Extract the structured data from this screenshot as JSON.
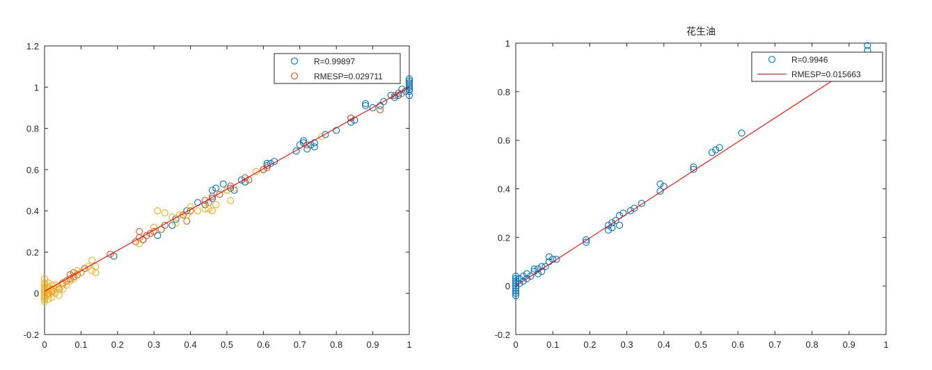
{
  "chart_data": [
    {
      "type": "scatter",
      "title": "",
      "xlabel": "",
      "ylabel": "",
      "xlim": [
        0,
        1
      ],
      "ylim": [
        -0.2,
        1.2
      ],
      "xticks": [
        "0",
        "0.1",
        "0.2",
        "0.3",
        "0.4",
        "0.5",
        "0.6",
        "0.7",
        "0.8",
        "0.9",
        "1"
      ],
      "yticks": [
        "-0.2",
        "0",
        "0.2",
        "0.4",
        "0.6",
        "0.8",
        "1",
        "1.2"
      ],
      "grid": false,
      "legend_position": "top-right",
      "legend": [
        "R=0.99897",
        "RMESP=0.029711"
      ],
      "fit_line": {
        "from": [
          0,
          0.01
        ],
        "to": [
          1,
          1.0
        ],
        "color": "#ff0000"
      },
      "series": [
        {
          "color": "#0072bd",
          "marker": "circle",
          "points": [
            [
              0.19,
              0.18
            ],
            [
              0.27,
              0.26
            ],
            [
              0.31,
              0.28
            ],
            [
              0.35,
              0.33
            ],
            [
              0.36,
              0.36
            ],
            [
              0.39,
              0.4
            ],
            [
              0.42,
              0.44
            ],
            [
              0.44,
              0.43
            ],
            [
              0.46,
              0.46
            ],
            [
              0.46,
              0.5
            ],
            [
              0.47,
              0.51
            ],
            [
              0.49,
              0.53
            ],
            [
              0.51,
              0.51
            ],
            [
              0.52,
              0.5
            ],
            [
              0.54,
              0.55
            ],
            [
              0.55,
              0.54
            ],
            [
              0.6,
              0.6
            ],
            [
              0.61,
              0.62
            ],
            [
              0.61,
              0.63
            ],
            [
              0.62,
              0.63
            ],
            [
              0.63,
              0.64
            ],
            [
              0.69,
              0.69
            ],
            [
              0.7,
              0.72
            ],
            [
              0.71,
              0.73
            ],
            [
              0.71,
              0.74
            ],
            [
              0.72,
              0.7
            ],
            [
              0.73,
              0.72
            ],
            [
              0.74,
              0.73
            ],
            [
              0.74,
              0.71
            ],
            [
              0.77,
              0.77
            ],
            [
              0.8,
              0.79
            ],
            [
              0.84,
              0.83
            ],
            [
              0.84,
              0.85
            ],
            [
              0.85,
              0.84
            ],
            [
              0.88,
              0.91
            ],
            [
              0.88,
              0.92
            ],
            [
              0.9,
              0.9
            ],
            [
              0.92,
              0.91
            ],
            [
              0.93,
              0.93
            ],
            [
              0.95,
              0.96
            ],
            [
              0.96,
              0.95
            ],
            [
              0.97,
              0.96
            ],
            [
              0.97,
              0.97
            ],
            [
              0.98,
              0.99
            ],
            [
              0.99,
              0.98
            ],
            [
              1,
              0.96
            ],
            [
              1,
              0.98
            ],
            [
              1,
              0.99
            ],
            [
              1,
              1
            ],
            [
              1,
              1.01
            ],
            [
              1,
              1.02
            ],
            [
              1,
              1.03
            ],
            [
              1,
              1.04
            ]
          ]
        },
        {
          "color": "#d95319",
          "marker": "circle",
          "points": [
            [
              0.01,
              0.0
            ],
            [
              0.02,
              0.01
            ],
            [
              0.04,
              0.02
            ],
            [
              0.05,
              0.05
            ],
            [
              0.06,
              0.06
            ],
            [
              0.07,
              0.07
            ],
            [
              0.07,
              0.09
            ],
            [
              0.08,
              0.08
            ],
            [
              0.08,
              0.1
            ],
            [
              0.09,
              0.09
            ],
            [
              0.1,
              0.1
            ],
            [
              0.11,
              0.12
            ],
            [
              0.18,
              0.19
            ],
            [
              0.25,
              0.25
            ],
            [
              0.26,
              0.27
            ],
            [
              0.26,
              0.3
            ],
            [
              0.27,
              0.26
            ],
            [
              0.28,
              0.28
            ],
            [
              0.29,
              0.29
            ],
            [
              0.3,
              0.3
            ],
            [
              0.32,
              0.31
            ],
            [
              0.33,
              0.33
            ],
            [
              0.38,
              0.38
            ],
            [
              0.39,
              0.35
            ],
            [
              0.4,
              0.4
            ],
            [
              0.44,
              0.45
            ],
            [
              0.45,
              0.44
            ],
            [
              0.46,
              0.47
            ],
            [
              0.48,
              0.48
            ],
            [
              0.5,
              0.5
            ],
            [
              0.51,
              0.52
            ],
            [
              0.55,
              0.56
            ],
            [
              0.56,
              0.55
            ],
            [
              0.6,
              0.6
            ],
            [
              0.61,
              0.61
            ],
            [
              0.72,
              0.72
            ],
            [
              0.84,
              0.85
            ],
            [
              0.92,
              0.89
            ],
            [
              0.96,
              0.96
            ],
            [
              0.98,
              0.97
            ]
          ]
        },
        {
          "color": "#edb120",
          "marker": "circle",
          "points": [
            [
              0,
              -0.04
            ],
            [
              0,
              -0.03
            ],
            [
              0,
              -0.02
            ],
            [
              0,
              -0.01
            ],
            [
              0,
              0
            ],
            [
              0,
              0.01
            ],
            [
              0,
              0.02
            ],
            [
              0,
              0.03
            ],
            [
              0,
              0.04
            ],
            [
              0,
              0.05
            ],
            [
              0,
              0.07
            ],
            [
              0.01,
              -0.03
            ],
            [
              0.01,
              -0.01
            ],
            [
              0.01,
              0.01
            ],
            [
              0.01,
              0.02
            ],
            [
              0.01,
              0.03
            ],
            [
              0.01,
              0.05
            ],
            [
              0.02,
              -0.02
            ],
            [
              0.02,
              0.0
            ],
            [
              0.02,
              0.02
            ],
            [
              0.02,
              0.04
            ],
            [
              0.03,
              0.0
            ],
            [
              0.03,
              0.02
            ],
            [
              0.03,
              0.04
            ],
            [
              0.04,
              -0.01
            ],
            [
              0.04,
              0.03
            ],
            [
              0.05,
              0.02
            ],
            [
              0.05,
              0.04
            ],
            [
              0.06,
              0.04
            ],
            [
              0.07,
              0.06
            ],
            [
              0.08,
              0.07
            ],
            [
              0.09,
              0.11
            ],
            [
              0.1,
              0.1
            ],
            [
              0.12,
              0.13
            ],
            [
              0.13,
              0.16
            ],
            [
              0.13,
              0.11
            ],
            [
              0.14,
              0.1
            ],
            [
              0.14,
              0.13
            ],
            [
              0.26,
              0.24
            ],
            [
              0.3,
              0.32
            ],
            [
              0.31,
              0.4
            ],
            [
              0.33,
              0.39
            ],
            [
              0.35,
              0.37
            ],
            [
              0.36,
              0.34
            ],
            [
              0.37,
              0.38
            ],
            [
              0.39,
              0.38
            ],
            [
              0.4,
              0.42
            ],
            [
              0.42,
              0.4
            ],
            [
              0.44,
              0.41
            ],
            [
              0.45,
              0.41
            ],
            [
              0.46,
              0.4
            ],
            [
              0.47,
              0.43
            ],
            [
              0.5,
              0.5
            ],
            [
              0.51,
              0.45
            ],
            [
              0.52,
              0.51
            ],
            [
              0.58,
              0.59
            ],
            [
              0.76,
              0.76
            ]
          ]
        }
      ]
    },
    {
      "type": "scatter",
      "title": "花生油",
      "xlabel": "",
      "ylabel": "",
      "xlim": [
        0,
        1
      ],
      "ylim": [
        -0.2,
        1
      ],
      "xticks": [
        "0",
        "0.1",
        "0.2",
        "0.3",
        "0.4",
        "0.5",
        "0.6",
        "0.7",
        "0.8",
        "0.9",
        "1"
      ],
      "yticks": [
        "-0.2",
        "0",
        "0.2",
        "0.4",
        "0.6",
        "0.8",
        "1"
      ],
      "grid": false,
      "legend_position": "top-right",
      "legend": [
        "R=0.9946",
        "RMESP=0.015663"
      ],
      "fit_line": {
        "from": [
          0,
          0.0
        ],
        "to": [
          0.88,
          0.87
        ],
        "color": "#ff0000"
      },
      "series": [
        {
          "color": "#0072bd",
          "marker": "circle",
          "points": [
            [
              0,
              -0.04
            ],
            [
              0,
              -0.03
            ],
            [
              0,
              -0.02
            ],
            [
              0,
              -0.01
            ],
            [
              0,
              0.0
            ],
            [
              0,
              0.01
            ],
            [
              0,
              0.02
            ],
            [
              0,
              0.03
            ],
            [
              0,
              0.04
            ],
            [
              0.01,
              0.01
            ],
            [
              0.01,
              0.03
            ],
            [
              0.02,
              0.02
            ],
            [
              0.02,
              0.04
            ],
            [
              0.03,
              0.03
            ],
            [
              0.03,
              0.05
            ],
            [
              0.04,
              0.04
            ],
            [
              0.05,
              0.06
            ],
            [
              0.05,
              0.07
            ],
            [
              0.06,
              0.05
            ],
            [
              0.06,
              0.07
            ],
            [
              0.07,
              0.08
            ],
            [
              0.07,
              0.06
            ],
            [
              0.08,
              0.08
            ],
            [
              0.09,
              0.1
            ],
            [
              0.09,
              0.12
            ],
            [
              0.1,
              0.11
            ],
            [
              0.11,
              0.11
            ],
            [
              0.19,
              0.18
            ],
            [
              0.19,
              0.19
            ],
            [
              0.25,
              0.23
            ],
            [
              0.25,
              0.25
            ],
            [
              0.26,
              0.24
            ],
            [
              0.26,
              0.26
            ],
            [
              0.27,
              0.27
            ],
            [
              0.28,
              0.25
            ],
            [
              0.28,
              0.29
            ],
            [
              0.29,
              0.3
            ],
            [
              0.31,
              0.31
            ],
            [
              0.32,
              0.32
            ],
            [
              0.34,
              0.34
            ],
            [
              0.39,
              0.39
            ],
            [
              0.39,
              0.42
            ],
            [
              0.4,
              0.41
            ],
            [
              0.48,
              0.48
            ],
            [
              0.48,
              0.49
            ],
            [
              0.53,
              0.55
            ],
            [
              0.54,
              0.56
            ],
            [
              0.55,
              0.57
            ],
            [
              0.61,
              0.63
            ],
            [
              0.95,
              0.97
            ],
            [
              0.95,
              0.99
            ]
          ]
        }
      ]
    }
  ]
}
